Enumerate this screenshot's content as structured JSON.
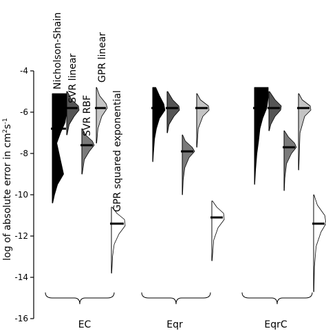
{
  "chart_data": {
    "type": "violin",
    "title": "",
    "ylabel": "log of absolute error in cm²s⁻¹",
    "ylabel_parts": {
      "prefix": "log of absolute error in cm",
      "sup1": "2",
      "mid": "s",
      "sup2": "-1"
    },
    "ylim": [
      -16,
      -4
    ],
    "yticks": [
      -4,
      -6,
      -8,
      -10,
      -12,
      -14,
      -16
    ],
    "ytick_labels": [
      "-4",
      "-6",
      "-8",
      "-10",
      "-12",
      "-14",
      "-16"
    ],
    "grid": false,
    "legend": "none",
    "groups": [
      "EC",
      "Eqr",
      "EqrC"
    ],
    "series": [
      {
        "name": "Nicholson-Shain",
        "color": "#000000"
      },
      {
        "name": "SVR linear",
        "color": "#555555"
      },
      {
        "name": "SVR RBF",
        "color": "#7a7a7a"
      },
      {
        "name": "GPR linear",
        "color": "#c4c4c4"
      },
      {
        "name": "GPR squared exponential",
        "color": "#ffffff"
      }
    ],
    "distributions": [
      {
        "group": "EC",
        "violins": [
          {
            "series": 0,
            "min": -10.4,
            "max": -5.1,
            "median": -6.8,
            "width": 22,
            "profile": [
              [
                -5.1,
                1.0
              ],
              [
                -5.5,
                1.0
              ],
              [
                -6.0,
                0.95
              ],
              [
                -6.5,
                0.85
              ],
              [
                -7.0,
                0.55
              ],
              [
                -7.5,
                0.3
              ],
              [
                -8.0,
                0.45
              ],
              [
                -8.5,
                0.6
              ],
              [
                -9.0,
                0.75
              ],
              [
                -9.5,
                0.35
              ],
              [
                -10.0,
                0.15
              ],
              [
                -10.4,
                0.03
              ]
            ]
          },
          {
            "series": 1,
            "min": -7.1,
            "max": -5.0,
            "median": -5.8,
            "width": 18,
            "profile": [
              [
                -5.0,
                0.05
              ],
              [
                -5.4,
                0.4
              ],
              [
                -5.7,
                0.95
              ],
              [
                -5.9,
                1.0
              ],
              [
                -6.2,
                0.6
              ],
              [
                -6.6,
                0.2
              ],
              [
                -7.1,
                0.03
              ]
            ]
          },
          {
            "series": 2,
            "min": -9.0,
            "max": -6.8,
            "median": -7.6,
            "width": 18,
            "profile": [
              [
                -6.8,
                0.03
              ],
              [
                -7.1,
                0.3
              ],
              [
                -7.4,
                0.85
              ],
              [
                -7.6,
                1.0
              ],
              [
                -7.9,
                0.6
              ],
              [
                -8.3,
                0.2
              ],
              [
                -9.0,
                0.03
              ]
            ]
          },
          {
            "series": 3,
            "min": -7.5,
            "max": -4.8,
            "median": -5.8,
            "width": 16,
            "profile": [
              [
                -4.8,
                0.03
              ],
              [
                -5.2,
                0.3
              ],
              [
                -5.6,
                0.9
              ],
              [
                -5.8,
                1.0
              ],
              [
                -6.2,
                0.5
              ],
              [
                -6.8,
                0.15
              ],
              [
                -7.5,
                0.03
              ]
            ]
          },
          {
            "series": 4,
            "min": -13.8,
            "max": -10.6,
            "median": -11.4,
            "width": 20,
            "profile": [
              [
                -10.6,
                0.05
              ],
              [
                -10.9,
                0.4
              ],
              [
                -11.2,
                0.95
              ],
              [
                -11.5,
                1.0
              ],
              [
                -11.9,
                0.55
              ],
              [
                -12.4,
                0.2
              ],
              [
                -13.0,
                0.08
              ],
              [
                -13.8,
                0.02
              ]
            ]
          }
        ]
      },
      {
        "group": "Eqr",
        "violins": [
          {
            "series": 0,
            "min": -8.4,
            "max": -4.8,
            "median": -5.8,
            "width": 18,
            "profile": [
              [
                -4.8,
                0.25
              ],
              [
                -5.2,
                0.55
              ],
              [
                -5.6,
                0.9
              ],
              [
                -5.9,
                1.0
              ],
              [
                -6.3,
                0.55
              ],
              [
                -6.8,
                0.3
              ],
              [
                -7.3,
                0.15
              ],
              [
                -8.0,
                0.06
              ],
              [
                -8.4,
                0.02
              ]
            ]
          },
          {
            "series": 1,
            "min": -7.0,
            "max": -5.0,
            "median": -5.8,
            "width": 18,
            "profile": [
              [
                -5.0,
                0.05
              ],
              [
                -5.4,
                0.45
              ],
              [
                -5.7,
                0.95
              ],
              [
                -5.9,
                1.0
              ],
              [
                -6.2,
                0.55
              ],
              [
                -6.6,
                0.15
              ],
              [
                -7.0,
                0.03
              ]
            ]
          },
          {
            "series": 2,
            "min": -10.0,
            "max": -7.1,
            "median": -7.9,
            "width": 18,
            "profile": [
              [
                -7.1,
                0.03
              ],
              [
                -7.4,
                0.25
              ],
              [
                -7.7,
                0.8
              ],
              [
                -7.9,
                1.0
              ],
              [
                -8.2,
                0.55
              ],
              [
                -8.7,
                0.2
              ],
              [
                -9.3,
                0.07
              ],
              [
                -10.0,
                0.02
              ]
            ]
          },
          {
            "series": 3,
            "min": -7.7,
            "max": -5.1,
            "median": -5.8,
            "width": 18,
            "profile": [
              [
                -5.1,
                0.03
              ],
              [
                -5.4,
                0.3
              ],
              [
                -5.7,
                0.95
              ],
              [
                -5.9,
                1.0
              ],
              [
                -6.2,
                0.5
              ],
              [
                -6.8,
                0.12
              ],
              [
                -7.7,
                0.02
              ]
            ]
          },
          {
            "series": 4,
            "min": -13.2,
            "max": -10.3,
            "median": -11.1,
            "width": 18,
            "profile": [
              [
                -10.3,
                0.05
              ],
              [
                -10.6,
                0.4
              ],
              [
                -10.9,
                0.95
              ],
              [
                -11.2,
                1.0
              ],
              [
                -11.6,
                0.5
              ],
              [
                -12.2,
                0.15
              ],
              [
                -13.2,
                0.02
              ]
            ]
          }
        ]
      },
      {
        "group": "EqrC",
        "violins": [
          {
            "series": 0,
            "min": -9.5,
            "max": -4.8,
            "median": -5.8,
            "width": 20,
            "profile": [
              [
                -4.8,
                1.0
              ],
              [
                -5.3,
                1.0
              ],
              [
                -5.8,
                0.9
              ],
              [
                -6.3,
                0.6
              ],
              [
                -6.8,
                0.4
              ],
              [
                -7.4,
                0.3
              ],
              [
                -8.0,
                0.18
              ],
              [
                -8.8,
                0.08
              ],
              [
                -9.5,
                0.02
              ]
            ]
          },
          {
            "series": 1,
            "min": -6.9,
            "max": -5.0,
            "median": -5.8,
            "width": 18,
            "profile": [
              [
                -5.0,
                0.05
              ],
              [
                -5.4,
                0.5
              ],
              [
                -5.7,
                1.0
              ],
              [
                -5.9,
                0.95
              ],
              [
                -6.2,
                0.5
              ],
              [
                -6.6,
                0.15
              ],
              [
                -6.9,
                0.03
              ]
            ]
          },
          {
            "series": 2,
            "min": -9.8,
            "max": -6.9,
            "median": -7.7,
            "width": 18,
            "profile": [
              [
                -6.9,
                0.03
              ],
              [
                -7.2,
                0.35
              ],
              [
                -7.5,
                0.85
              ],
              [
                -7.7,
                1.0
              ],
              [
                -8.0,
                0.6
              ],
              [
                -8.5,
                0.2
              ],
              [
                -9.2,
                0.06
              ],
              [
                -9.8,
                0.02
              ]
            ]
          },
          {
            "series": 3,
            "min": -8.8,
            "max": -5.1,
            "median": -5.8,
            "width": 18,
            "profile": [
              [
                -5.1,
                0.03
              ],
              [
                -5.4,
                0.3
              ],
              [
                -5.7,
                0.95
              ],
              [
                -5.9,
                1.0
              ],
              [
                -6.2,
                0.5
              ],
              [
                -7.0,
                0.12
              ],
              [
                -8.8,
                0.02
              ]
            ]
          },
          {
            "series": 4,
            "min": -14.7,
            "max": -10.0,
            "median": -11.4,
            "width": 18,
            "profile": [
              [
                -10.0,
                0.03
              ],
              [
                -10.5,
                0.3
              ],
              [
                -11.0,
                0.9
              ],
              [
                -11.4,
                1.0
              ],
              [
                -11.8,
                0.6
              ],
              [
                -12.5,
                0.2
              ],
              [
                -13.5,
                0.06
              ],
              [
                -14.7,
                0.02
              ]
            ]
          }
        ]
      }
    ]
  }
}
